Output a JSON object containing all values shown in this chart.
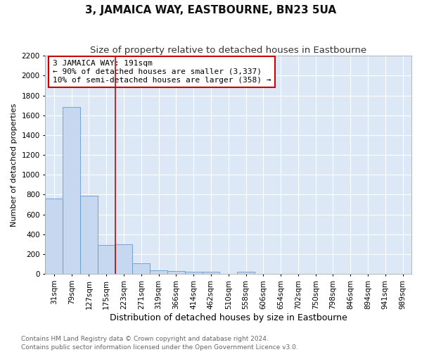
{
  "title": "3, JAMAICA WAY, EASTBOURNE, BN23 5UA",
  "subtitle": "Size of property relative to detached houses in Eastbourne",
  "xlabel": "Distribution of detached houses by size in Eastbourne",
  "ylabel": "Number of detached properties",
  "categories": [
    "31sqm",
    "79sqm",
    "127sqm",
    "175sqm",
    "223sqm",
    "271sqm",
    "319sqm",
    "366sqm",
    "414sqm",
    "462sqm",
    "510sqm",
    "558sqm",
    "606sqm",
    "654sqm",
    "702sqm",
    "750sqm",
    "798sqm",
    "846sqm",
    "894sqm",
    "941sqm",
    "989sqm"
  ],
  "values": [
    760,
    1680,
    790,
    295,
    300,
    110,
    40,
    30,
    25,
    20,
    0,
    20,
    0,
    0,
    0,
    0,
    0,
    0,
    0,
    0,
    0
  ],
  "bar_color": "#c5d8f0",
  "bar_edge_color": "#6699cc",
  "vline_x": 3.5,
  "vline_color": "#cc0000",
  "annotation_text": "3 JAMAICA WAY: 191sqm\n← 90% of detached houses are smaller (3,337)\n10% of semi-detached houses are larger (358) →",
  "annotation_box_color": "#ffffff",
  "annotation_box_edge": "#cc0000",
  "ylim": [
    0,
    2200
  ],
  "yticks": [
    0,
    200,
    400,
    600,
    800,
    1000,
    1200,
    1400,
    1600,
    1800,
    2000,
    2200
  ],
  "fig_bg": "#ffffff",
  "plot_bg": "#dce8f5",
  "footer_text": "Contains HM Land Registry data © Crown copyright and database right 2024.\nContains public sector information licensed under the Open Government Licence v3.0.",
  "title_fontsize": 11,
  "subtitle_fontsize": 9.5,
  "xlabel_fontsize": 9,
  "ylabel_fontsize": 8,
  "tick_fontsize": 7.5,
  "footer_fontsize": 6.5
}
